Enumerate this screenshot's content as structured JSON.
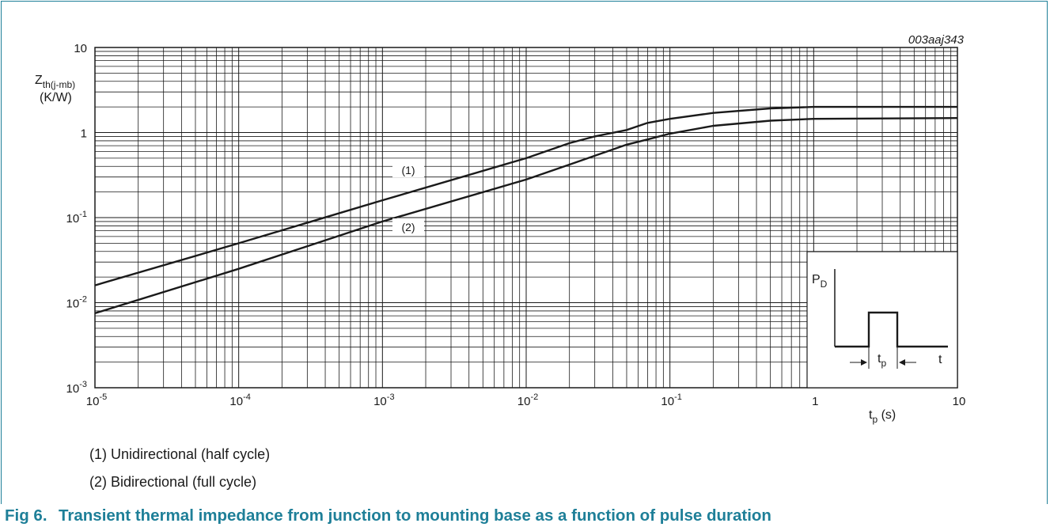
{
  "figure": {
    "number": "Fig 6.",
    "caption": "Transient thermal impedance from junction to mounting base as a function of pulse duration",
    "code": "003aaj343"
  },
  "legend": [
    "(1) Unidirectional (half cycle)",
    "(2) Bidirectional (full cycle)"
  ],
  "chart_data": {
    "type": "line",
    "x_scale": "log",
    "y_scale": "log",
    "xlim": [
      1e-05,
      10
    ],
    "ylim": [
      0.001,
      10
    ],
    "grid": true,
    "ylabel": {
      "main": "Z",
      "sub": "th(j-mb)",
      "unit": "(K/W)"
    },
    "xlabel": {
      "main": "t",
      "sub": "p",
      "unit": "(s)"
    },
    "x_ticks": [
      {
        "value": 1e-05,
        "base": "10",
        "exp": "-5"
      },
      {
        "value": 0.0001,
        "base": "10",
        "exp": "-4"
      },
      {
        "value": 0.001,
        "base": "10",
        "exp": "-3"
      },
      {
        "value": 0.01,
        "base": "10",
        "exp": "-2"
      },
      {
        "value": 0.1,
        "base": "10",
        "exp": "-1"
      },
      {
        "value": 1,
        "base": "1",
        "exp": ""
      },
      {
        "value": 10,
        "base": "10",
        "exp": ""
      }
    ],
    "y_ticks": [
      {
        "value": 0.001,
        "base": "10",
        "exp": "-3"
      },
      {
        "value": 0.01,
        "base": "10",
        "exp": "-2"
      },
      {
        "value": 0.1,
        "base": "10",
        "exp": "-1"
      },
      {
        "value": 1,
        "base": "1",
        "exp": ""
      },
      {
        "value": 10,
        "base": "10",
        "exp": ""
      }
    ],
    "series": [
      {
        "name": "(1)",
        "x": [
          1e-05,
          0.0001,
          0.001,
          0.01,
          0.02,
          0.03,
          0.05,
          0.07,
          0.1,
          0.2,
          0.5,
          1,
          10
        ],
        "y": [
          0.016,
          0.05,
          0.16,
          0.5,
          0.75,
          0.9,
          1.07,
          1.3,
          1.45,
          1.7,
          1.92,
          2.0,
          2.0
        ]
      },
      {
        "name": "(2)",
        "x": [
          1e-05,
          0.0001,
          0.001,
          0.01,
          0.02,
          0.05,
          0.07,
          0.1,
          0.2,
          0.5,
          1,
          10
        ],
        "y": [
          0.0075,
          0.025,
          0.09,
          0.28,
          0.42,
          0.72,
          0.83,
          0.97,
          1.2,
          1.38,
          1.45,
          1.48
        ]
      }
    ],
    "inset": {
      "y_label": {
        "main": "P",
        "sub": "D"
      },
      "width_label": {
        "main": "t",
        "sub": "p"
      },
      "x_label": "t"
    }
  }
}
